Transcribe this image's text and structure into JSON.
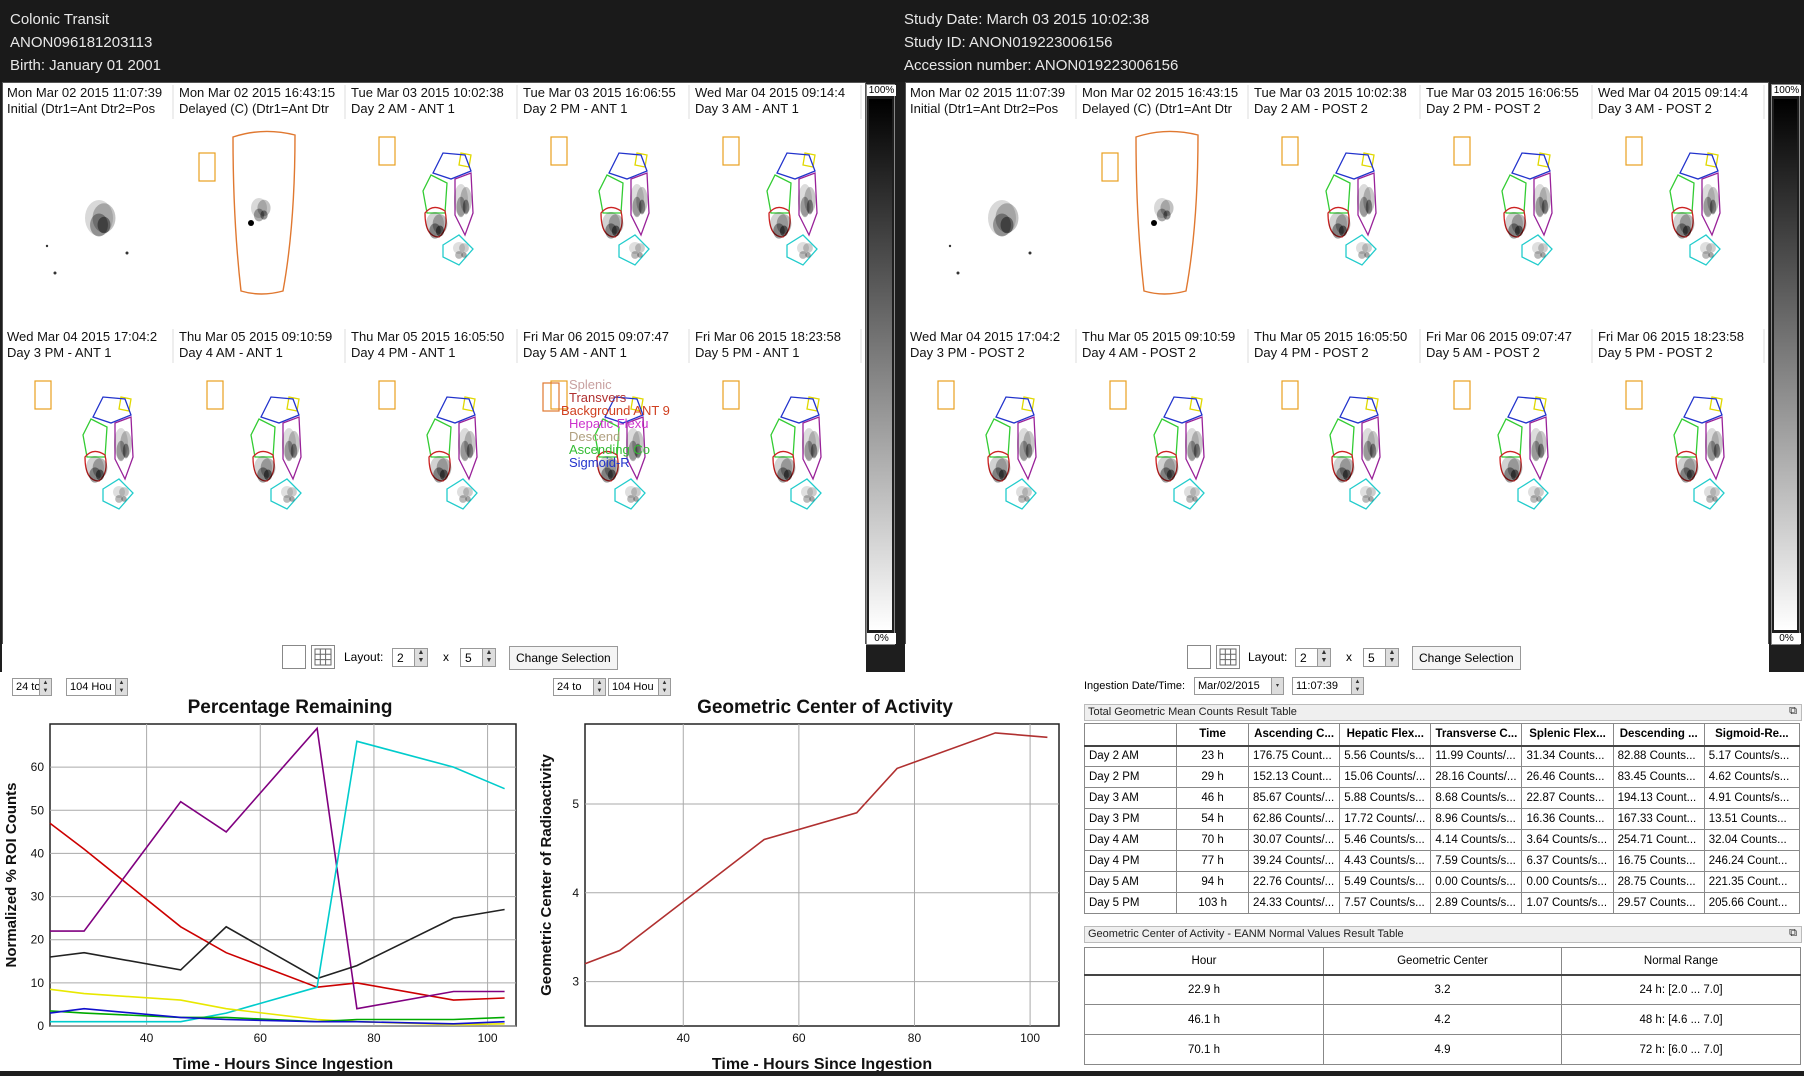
{
  "header": {
    "study_name": "Colonic Transit",
    "patient_id": "ANON096181203113",
    "birth": "Birth: January 01 2001",
    "study_date": "Study Date: March 03 2015 10:02:38",
    "study_id": "Study ID: ANON019223006156",
    "accession": "Accession number: ANON019223006156"
  },
  "ant_panel": {
    "frames": [
      {
        "date": "Mon Mar 02 2015 11:07:39",
        "label": "Initial (Dtr1=Ant Dtr2=Pos"
      },
      {
        "date": "Mon Mar 02 2015 16:43:15",
        "label": "Delayed (C) (Dtr1=Ant Dtr"
      },
      {
        "date": "Tue Mar 03 2015 10:02:38",
        "label": "Day 2 AM - ANT 1"
      },
      {
        "date": "Tue Mar 03 2015 16:06:55",
        "label": "Day 2 PM - ANT 1"
      },
      {
        "date": "Wed Mar 04 2015 09:14:4",
        "label": "Day 3 AM - ANT 1"
      },
      {
        "date": "Wed Mar 04 2015 17:04:2",
        "label": "Day 3 PM - ANT 1"
      },
      {
        "date": "Thu Mar 05 2015 09:10:59",
        "label": "Day 4 AM - ANT 1"
      },
      {
        "date": "Thu Mar 05 2015 16:05:50",
        "label": "Day 4 PM - ANT 1"
      },
      {
        "date": "Fri Mar 06 2015 09:07:47",
        "label": "Day 5 AM - ANT 1"
      },
      {
        "date": "Fri Mar 06 2015 18:23:58",
        "label": "Day 5 PM - ANT 1"
      }
    ],
    "roi_legend": [
      {
        "text": "Splenic",
        "color": "#c8a0a0"
      },
      {
        "text": "Transvers",
        "color": "#b03030"
      },
      {
        "text": "Background ANT 9",
        "color": "#d04020"
      },
      {
        "text": "Hepatic Flexu",
        "color": "#cc33cc"
      },
      {
        "text": "Descend",
        "color": "#b0a080"
      },
      {
        "text": "Ascending Co",
        "color": "#33bb33"
      },
      {
        "text": "Sigmoid-R",
        "color": "#2233cc"
      }
    ]
  },
  "post_panel": {
    "frames": [
      {
        "date": "Mon Mar 02 2015 11:07:39",
        "label": "Initial (Dtr1=Ant Dtr2=Pos"
      },
      {
        "date": "Mon Mar 02 2015 16:43:15",
        "label": "Delayed (C) (Dtr1=Ant Dtr"
      },
      {
        "date": "Tue Mar 03 2015 10:02:38",
        "label": "Day 2 AM - POST 2"
      },
      {
        "date": "Tue Mar 03 2015 16:06:55",
        "label": "Day 2 PM - POST 2"
      },
      {
        "date": "Wed Mar 04 2015 09:14:4",
        "label": "Day 3 AM - POST 2"
      },
      {
        "date": "Wed Mar 04 2015 17:04:2",
        "label": "Day 3 PM - POST 2"
      },
      {
        "date": "Thu Mar 05 2015 09:10:59",
        "label": "Day 4 AM - POST 2"
      },
      {
        "date": "Thu Mar 05 2015 16:05:50",
        "label": "Day 4 PM - POST 2"
      },
      {
        "date": "Fri Mar 06 2015 09:07:47",
        "label": "Day 5 AM - POST 2"
      },
      {
        "date": "Fri Mar 06 2015 18:23:58",
        "label": "Day 5 PM - POST 2"
      }
    ]
  },
  "scale": {
    "top": "100%",
    "bottom": "0%"
  },
  "layout_controls": {
    "label": "Layout:",
    "rows": "2",
    "times": "x",
    "cols": "5",
    "change_button": "Change Selection"
  },
  "range_controls": {
    "left_from": "24 to",
    "left_to": "104 Hou",
    "mid_from": "24 to",
    "mid_to": "104 Hou"
  },
  "ingestion": {
    "label": "Ingestion Date/Time:",
    "date": "Mar/02/2015",
    "time": "11:07:39"
  },
  "table1": {
    "title": "Total Geometric Mean Counts Result Table",
    "headers": [
      "",
      "Time",
      "Ascending C...",
      "Hepatic Flex...",
      "Transverse C...",
      "Splenic Flex...",
      "Descending ...",
      "Sigmoid-Re..."
    ],
    "rows": [
      [
        "Day 2 AM",
        "23 h",
        "176.75 Count...",
        "5.56 Counts/s...",
        "11.99 Counts/...",
        "31.34 Counts...",
        "82.88 Counts...",
        "5.17 Counts/s..."
      ],
      [
        "Day 2 PM",
        "29 h",
        "152.13 Count...",
        "15.06 Counts/...",
        "28.16 Counts/...",
        "26.46 Counts...",
        "83.45 Counts...",
        "4.62 Counts/s..."
      ],
      [
        "Day 3 AM",
        "46 h",
        "85.67 Counts/...",
        "5.88 Counts/s...",
        "8.68 Counts/s...",
        "22.87 Counts...",
        "194.13 Count...",
        "4.91 Counts/s..."
      ],
      [
        "Day 3 PM",
        "54 h",
        "62.86 Counts/...",
        "17.72 Counts/...",
        "8.96 Counts/s...",
        "16.36 Counts...",
        "167.33 Count...",
        "13.51 Counts..."
      ],
      [
        "Day 4 AM",
        "70 h",
        "30.07 Counts/...",
        "5.46 Counts/s...",
        "4.14 Counts/s...",
        "3.64 Counts/s...",
        "254.71 Count...",
        "32.04 Counts..."
      ],
      [
        "Day 4 PM",
        "77 h",
        "39.24 Counts/...",
        "4.43 Counts/s...",
        "7.59 Counts/s...",
        "6.37 Counts/s...",
        "16.75 Counts...",
        "246.24 Count..."
      ],
      [
        "Day 5 AM",
        "94 h",
        "22.76 Counts/...",
        "5.49 Counts/s...",
        "0.00 Counts/s...",
        "0.00 Counts/s...",
        "28.75 Counts...",
        "221.35 Count..."
      ],
      [
        "Day 5 PM",
        "103 h",
        "24.33 Counts/...",
        "7.57 Counts/s...",
        "2.89 Counts/s...",
        "1.07 Counts/s...",
        "29.57 Counts...",
        "205.66 Count..."
      ]
    ]
  },
  "table2": {
    "title": "Geometric Center of Activity - EANM Normal Values Result Table",
    "headers": [
      "Hour",
      "Geometric Center",
      "Normal Range"
    ],
    "rows": [
      [
        "22.9 h",
        "3.2",
        "24 h: [2.0 ... 7.0]"
      ],
      [
        "46.1 h",
        "4.2",
        "48 h: [4.6 ... 7.0]"
      ],
      [
        "70.1 h",
        "4.9",
        "72 h: [6.0 ... 7.0]"
      ]
    ]
  },
  "chart_data": [
    {
      "type": "line",
      "title": "Percentage Remaining",
      "xlabel": "Time - Hours Since Ingestion",
      "ylabel": "Normalized % ROI Counts",
      "xlim": [
        23,
        105
      ],
      "ylim": [
        0,
        70
      ],
      "xticks": [
        40,
        60,
        80,
        100
      ],
      "yticks": [
        0,
        10,
        20,
        30,
        40,
        50,
        60
      ],
      "grid": true,
      "series": [
        {
          "color": "#cc0000",
          "x": [
            23,
            29,
            46,
            54,
            70,
            77,
            94,
            103
          ],
          "y": [
            47,
            41,
            23,
            17,
            9,
            10,
            6,
            6.5
          ]
        },
        {
          "color": "#800080",
          "x": [
            23,
            29,
            46,
            54,
            70,
            77,
            94,
            103
          ],
          "y": [
            22,
            22,
            52,
            45,
            69,
            4,
            8,
            8
          ]
        },
        {
          "color": "#222222",
          "x": [
            23,
            29,
            46,
            54,
            70,
            77,
            94,
            103
          ],
          "y": [
            16,
            17,
            13,
            23,
            11,
            14,
            25,
            27
          ]
        },
        {
          "color": "#00cccc",
          "x": [
            23,
            29,
            46,
            54,
            70,
            77,
            94,
            103
          ],
          "y": [
            1,
            1,
            1,
            3,
            9,
            66,
            60,
            55
          ]
        },
        {
          "color": "#e8e800",
          "x": [
            23,
            29,
            46,
            54,
            70,
            77,
            94,
            103
          ],
          "y": [
            8.5,
            7.5,
            6,
            4,
            1.5,
            1,
            0.3,
            0.5
          ]
        },
        {
          "color": "#00aa00",
          "x": [
            23,
            29,
            46,
            54,
            70,
            77,
            94,
            103
          ],
          "y": [
            3.5,
            3,
            2,
            2,
            1,
            1.5,
            1.5,
            2
          ]
        },
        {
          "color": "#1010cc",
          "x": [
            23,
            29,
            46,
            54,
            70,
            77,
            94,
            103
          ],
          "y": [
            3,
            4,
            2,
            1.5,
            1,
            1,
            0.5,
            1
          ]
        }
      ]
    },
    {
      "type": "line",
      "title": "Geometric Center of Activity",
      "xlabel": "Time - Hours Since Ingestion",
      "ylabel": "Geometric Center of Radioactivity",
      "xlim": [
        23,
        105
      ],
      "ylim": [
        2.5,
        5.9
      ],
      "xticks": [
        40,
        60,
        80,
        100
      ],
      "yticks": [
        3,
        4,
        5
      ],
      "grid": true,
      "series": [
        {
          "color": "#b03030",
          "x": [
            23,
            29,
            46,
            54,
            70,
            77,
            94,
            103
          ],
          "y": [
            3.2,
            3.35,
            4.2,
            4.6,
            4.9,
            5.4,
            5.8,
            5.75
          ]
        }
      ]
    }
  ]
}
